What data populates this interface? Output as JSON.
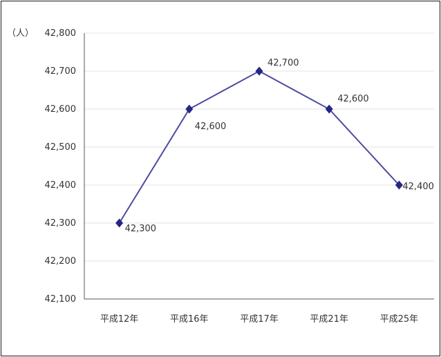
{
  "chart_data": {
    "type": "line",
    "unit_label": "（人）",
    "categories": [
      "平成12年",
      "平成16年",
      "平成17年",
      "平成21年",
      "平成25年"
    ],
    "values": [
      42300,
      42600,
      42700,
      42600,
      42400
    ],
    "data_labels": [
      "42,300",
      "42,600",
      "42,700",
      "42,600",
      "42,400"
    ],
    "yticks": [
      42100,
      42200,
      42300,
      42400,
      42500,
      42600,
      42700,
      42800
    ],
    "ytick_labels": [
      "42,100",
      "42,200",
      "42,300",
      "42,400",
      "42,500",
      "42,600",
      "42,700",
      "42,800"
    ],
    "ylim": [
      42100,
      42800
    ],
    "grid": true,
    "line_color": "#4a4aa0",
    "marker_color": "#262682",
    "marker": "diamond"
  }
}
